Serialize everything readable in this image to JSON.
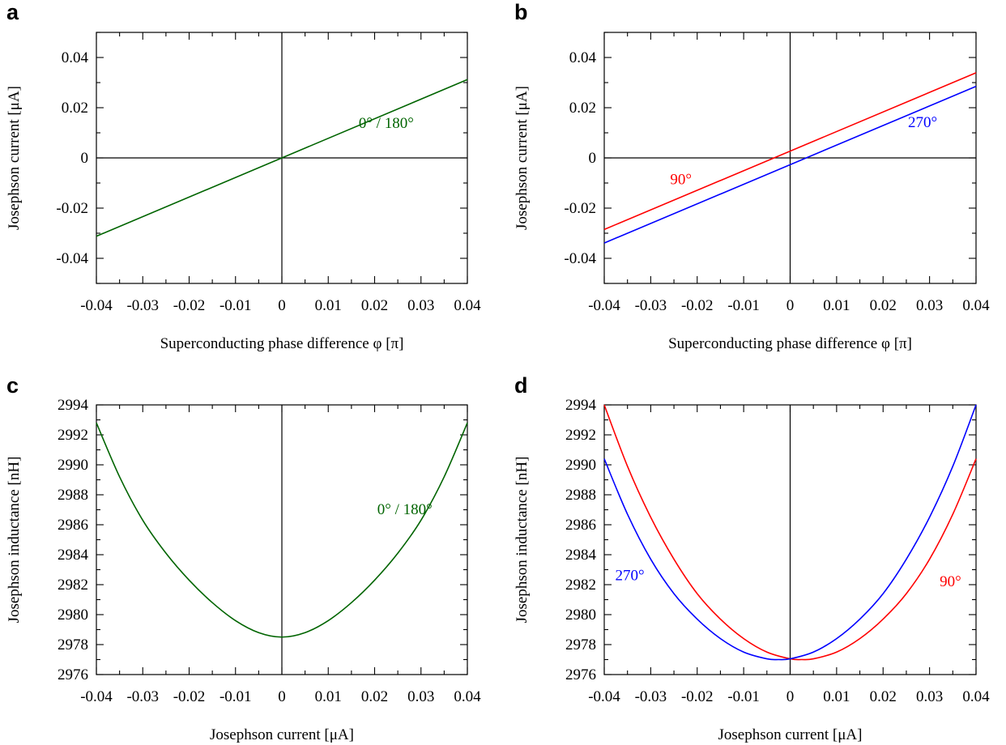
{
  "chart_data": [
    {
      "panel_label": "a",
      "type": "line",
      "xlabel": "Superconducting phase difference φ [π]",
      "ylabel": "Josephson current [μA]",
      "xlim": [
        -0.04,
        0.04
      ],
      "ylim": [
        -0.05,
        0.05
      ],
      "xticks": [
        -0.04,
        -0.03,
        -0.02,
        -0.01,
        0,
        0.01,
        0.02,
        0.03,
        0.04
      ],
      "xtick_labels": [
        "-0.04",
        "-0.03",
        "-0.02",
        "-0.01",
        "0",
        "0.01",
        "0.02",
        "0.03",
        "0.04"
      ],
      "yticks": [
        -0.04,
        -0.02,
        0,
        0.02,
        0.04
      ],
      "ytick_labels": [
        "-0.04",
        "-0.02",
        "0",
        "0.02",
        "0.04"
      ],
      "series": [
        {
          "name": "0° / 180°",
          "color": "#006400",
          "label_at": [
            0.0225,
            0.012
          ],
          "x": [
            -0.04,
            0.04
          ],
          "y": [
            -0.0312,
            0.0312
          ]
        }
      ]
    },
    {
      "panel_label": "b",
      "type": "line",
      "xlabel": "Superconducting phase difference φ [π]",
      "ylabel": "Josephson current [μA]",
      "xlim": [
        -0.04,
        0.04
      ],
      "ylim": [
        -0.05,
        0.05
      ],
      "xticks": [
        -0.04,
        -0.03,
        -0.02,
        -0.01,
        0,
        0.01,
        0.02,
        0.03,
        0.04
      ],
      "xtick_labels": [
        "-0.04",
        "-0.03",
        "-0.02",
        "-0.01",
        "0",
        "0.01",
        "0.02",
        "0.03",
        "0.04"
      ],
      "yticks": [
        -0.04,
        -0.02,
        0,
        0.02,
        0.04
      ],
      "ytick_labels": [
        "-0.04",
        "-0.02",
        "0",
        "0.02",
        "0.04"
      ],
      "series": [
        {
          "name": "90°",
          "color": "#ff0000",
          "label_at": [
            -0.0235,
            -0.0105
          ],
          "x": [
            -0.04,
            0.04
          ],
          "y": [
            -0.0285,
            0.0339
          ]
        },
        {
          "name": "270°",
          "color": "#0000ff",
          "label_at": [
            0.0285,
            0.0122
          ],
          "x": [
            -0.04,
            0.04
          ],
          "y": [
            -0.0339,
            0.0285
          ]
        }
      ]
    },
    {
      "panel_label": "c",
      "type": "line",
      "xlabel": "Josephson current [μA]",
      "ylabel": "Josephson inductance [nH]",
      "xlim": [
        -0.04,
        0.04
      ],
      "ylim": [
        2976,
        2994
      ],
      "xticks": [
        -0.04,
        -0.03,
        -0.02,
        -0.01,
        0,
        0.01,
        0.02,
        0.03,
        0.04
      ],
      "xtick_labels": [
        "-0.04",
        "-0.03",
        "-0.02",
        "-0.01",
        "0",
        "0.01",
        "0.02",
        "0.03",
        "0.04"
      ],
      "yticks": [
        2976,
        2978,
        2980,
        2982,
        2984,
        2986,
        2988,
        2990,
        2992,
        2994
      ],
      "ytick_labels": [
        "2976",
        "2978",
        "2980",
        "2982",
        "2984",
        "2986",
        "2988",
        "2990",
        "2992",
        "2994"
      ],
      "series": [
        {
          "name": "0° / 180°",
          "color": "#006400",
          "label_at": [
            0.0265,
            2986.7
          ],
          "x": [
            -0.04,
            -0.035,
            -0.03,
            -0.025,
            -0.02,
            -0.015,
            -0.01,
            -0.005,
            0,
            0.005,
            0.01,
            0.015,
            0.02,
            0.025,
            0.03,
            0.035,
            0.04
          ],
          "y": [
            2992.8,
            2989.2,
            2986.3,
            2984.1,
            2982.3,
            2980.8,
            2979.6,
            2978.8,
            2978.5,
            2978.8,
            2979.6,
            2980.8,
            2982.3,
            2984.1,
            2986.3,
            2989.2,
            2992.8
          ]
        }
      ]
    },
    {
      "panel_label": "d",
      "type": "line",
      "xlabel": "Josephson current [μA]",
      "ylabel": "Josephson inductance [nH]",
      "xlim": [
        -0.04,
        0.04
      ],
      "ylim": [
        2976,
        2994
      ],
      "xticks": [
        -0.04,
        -0.03,
        -0.02,
        -0.01,
        0,
        0.01,
        0.02,
        0.03,
        0.04
      ],
      "xtick_labels": [
        "-0.04",
        "-0.03",
        "-0.02",
        "-0.01",
        "0",
        "0.01",
        "0.02",
        "0.03",
        "0.04"
      ],
      "yticks": [
        2976,
        2978,
        2980,
        2982,
        2984,
        2986,
        2988,
        2990,
        2992,
        2994
      ],
      "ytick_labels": [
        "2976",
        "2978",
        "2980",
        "2982",
        "2984",
        "2986",
        "2988",
        "2990",
        "2992",
        "2994"
      ],
      "series": [
        {
          "name": "90°",
          "color": "#ff0000",
          "label_at": [
            0.0345,
            2981.9
          ],
          "x": [
            -0.04,
            -0.035,
            -0.03,
            -0.025,
            -0.02,
            -0.015,
            -0.01,
            -0.005,
            0,
            0.0025,
            0.005,
            0.01,
            0.015,
            0.02,
            0.025,
            0.03,
            0.035,
            0.04
          ],
          "y": [
            2994.0,
            2989.9,
            2986.5,
            2983.7,
            2981.4,
            2979.7,
            2978.4,
            2977.5,
            2977.05,
            2977.0,
            2977.05,
            2977.5,
            2978.4,
            2979.7,
            2981.4,
            2983.7,
            2986.7,
            2990.4
          ]
        },
        {
          "name": "270°",
          "color": "#0000ff",
          "label_at": [
            -0.0345,
            2982.3
          ],
          "x": [
            -0.04,
            -0.035,
            -0.03,
            -0.025,
            -0.02,
            -0.015,
            -0.01,
            -0.005,
            -0.0025,
            0,
            0.005,
            0.01,
            0.015,
            0.02,
            0.025,
            0.03,
            0.035,
            0.04
          ],
          "y": [
            2990.4,
            2986.7,
            2983.7,
            2981.4,
            2979.7,
            2978.4,
            2977.5,
            2977.05,
            2977.0,
            2977.05,
            2977.5,
            2978.4,
            2979.7,
            2981.4,
            2983.7,
            2986.5,
            2989.9,
            2994.0
          ]
        }
      ]
    }
  ]
}
